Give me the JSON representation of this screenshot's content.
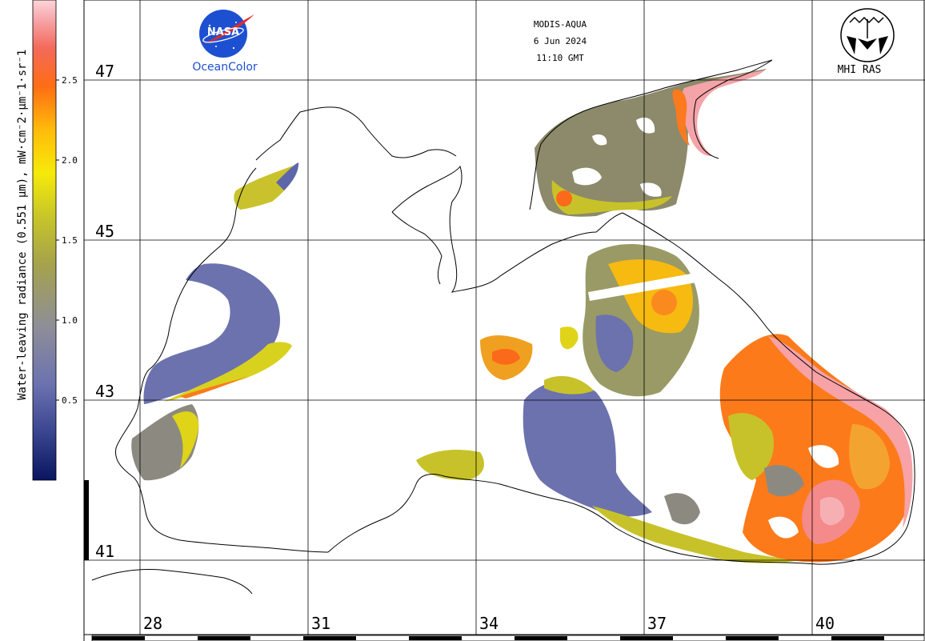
{
  "header": {
    "agency_logo": "nasa-meatball-logo",
    "agency_text": "NASA",
    "product": "OceanColor",
    "sensor": "MODIS-AQUA",
    "date": "6 Jun 2024",
    "time": "11:10 GMT",
    "institute_logo": "mhi-ras-emblem",
    "institute": "MHI RAS"
  },
  "colorbar": {
    "title": "Water-leaving radiance (0.551 µm), mW·cm⁻2·µm⁻1·sr⁻1",
    "ticks": [
      "2.5",
      "2.0",
      "1.5",
      "1.0",
      "0.5"
    ],
    "tick_values": [
      2.5,
      2.0,
      1.5,
      1.0,
      0.5
    ],
    "range": [
      0.0,
      2.9
    ],
    "colors": [
      "#0a1560",
      "#5b64ac",
      "#8c8d9d",
      "#a6a34a",
      "#d3d114",
      "#f8ec08",
      "#ffb60a",
      "#fe6a16",
      "#f54e3a",
      "#f6989a",
      "#fbd2d6"
    ]
  },
  "grid": {
    "latitudes": [
      "47",
      "45",
      "43",
      "41"
    ],
    "longitudes": [
      "28",
      "31",
      "34",
      "37",
      "40"
    ]
  },
  "colors": {
    "coast": "#000000",
    "grid": "#000000",
    "nasa_blue": "#1d4fd1",
    "nasa_red": "#e22b2b"
  }
}
